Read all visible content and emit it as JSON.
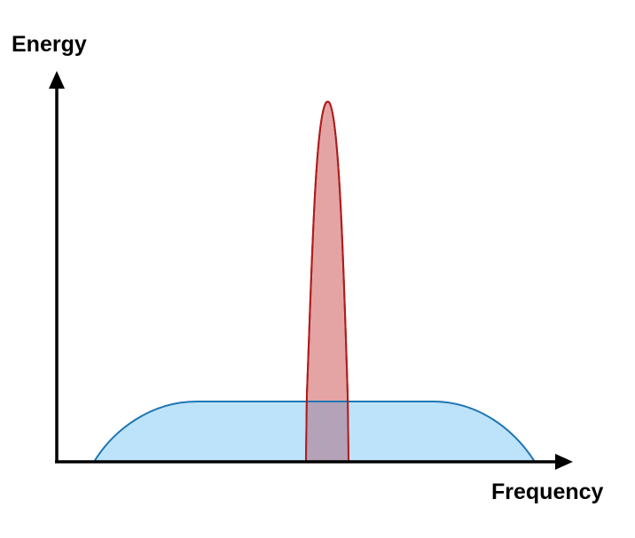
{
  "diagram": {
    "y_axis_label": "Energy",
    "x_axis_label": "Frequency"
  },
  "colors": {
    "axis": "#000000",
    "wideband_fill": "#bde3fa",
    "wideband_stroke": "#1f77b4",
    "narrowband_fill": "#e4a4a4",
    "narrowband_stroke": "#b01c1c"
  }
}
